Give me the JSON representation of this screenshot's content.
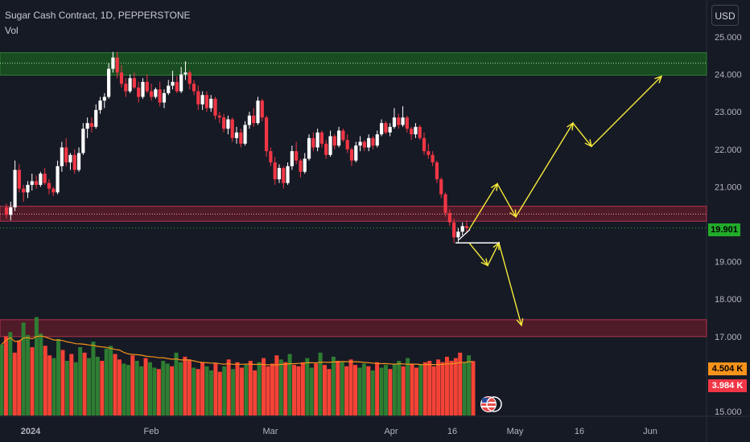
{
  "header": {
    "title": "Sugar Cash Contract, 1D, PEPPERSTONE",
    "indicator": "Vol",
    "currency_button": "USD"
  },
  "price_label": "19.901",
  "volume_labels": {
    "ma": "4.504 K",
    "last": "3.984 K"
  },
  "colors": {
    "background": "#161a25",
    "up": "#ffffff",
    "down": "#f23645",
    "vol_up": "#2e7d32",
    "vol_down": "#f44336",
    "vol_ma": "#f7931a",
    "supply_zone": "#1b5e20",
    "demand_zone": "#7f1d2b",
    "projection": "#f5ea3a",
    "price_badge": "#22ab2a"
  },
  "chart_data": {
    "type": "candlestick",
    "title": "Sugar Cash Contract, 1D, PEPPERSTONE",
    "ylim": [
      15.0,
      25.3
    ],
    "y_ticks": [
      "25.000",
      "24.000",
      "23.000",
      "22.000",
      "21.000",
      "19.000",
      "18.000",
      "17.000",
      "15.000"
    ],
    "x_ticks": [
      "2024",
      "Feb",
      "Mar",
      "Apr",
      "16",
      "May",
      "16",
      "Jun"
    ],
    "last_price": 19.901,
    "zones": [
      {
        "from": 23.98,
        "to": 24.58,
        "color": "green"
      },
      {
        "from": 20.08,
        "to": 20.48,
        "color": "red"
      },
      {
        "from": 17.0,
        "to": 17.45,
        "color": "red"
      }
    ],
    "dotted_levels": [
      24.3,
      20.27
    ],
    "projections": [
      {
        "name": "bullish",
        "points": [
          [
            19.86
          ],
          [
            21.08
          ],
          [
            20.2
          ],
          [
            22.7
          ],
          [
            22.08
          ],
          [
            23.95
          ]
        ]
      },
      {
        "name": "bearish",
        "points": [
          [
            19.5
          ],
          [
            18.9
          ],
          [
            19.5
          ],
          [
            17.3
          ]
        ]
      }
    ],
    "candles": [
      [
        20.45,
        20.55,
        20.15,
        20.25
      ],
      [
        20.25,
        20.6,
        20.1,
        20.45
      ],
      [
        20.45,
        21.7,
        20.35,
        21.45
      ],
      [
        21.45,
        21.6,
        20.85,
        20.95
      ],
      [
        20.95,
        21.05,
        20.6,
        20.85
      ],
      [
        20.85,
        21.15,
        20.7,
        21.05
      ],
      [
        21.05,
        21.35,
        20.9,
        21.15
      ],
      [
        21.15,
        21.3,
        20.95,
        21.05
      ],
      [
        21.05,
        21.4,
        21.0,
        21.35
      ],
      [
        21.35,
        21.5,
        21.05,
        21.1
      ],
      [
        21.1,
        21.2,
        20.8,
        20.95
      ],
      [
        20.95,
        21.0,
        20.75,
        20.85
      ],
      [
        20.85,
        21.7,
        20.8,
        21.55
      ],
      [
        21.55,
        22.2,
        21.4,
        22.05
      ],
      [
        22.05,
        22.3,
        21.55,
        21.65
      ],
      [
        21.65,
        21.9,
        21.45,
        21.85
      ],
      [
        21.85,
        22.0,
        21.35,
        21.45
      ],
      [
        21.45,
        22.05,
        21.4,
        21.9
      ],
      [
        21.9,
        22.7,
        21.85,
        22.55
      ],
      [
        22.55,
        22.85,
        22.3,
        22.7
      ],
      [
        22.7,
        22.85,
        22.45,
        22.6
      ],
      [
        22.6,
        23.2,
        22.55,
        23.05
      ],
      [
        23.05,
        23.4,
        22.95,
        23.3
      ],
      [
        23.3,
        23.5,
        23.1,
        23.4
      ],
      [
        23.4,
        24.3,
        23.35,
        24.15
      ],
      [
        24.15,
        24.6,
        24.05,
        24.45
      ],
      [
        24.45,
        24.6,
        23.9,
        24.05
      ],
      [
        24.05,
        24.25,
        23.65,
        23.75
      ],
      [
        23.75,
        23.9,
        23.4,
        23.55
      ],
      [
        23.55,
        24.0,
        23.5,
        23.9
      ],
      [
        23.9,
        24.05,
        23.6,
        23.65
      ],
      [
        23.65,
        23.8,
        23.25,
        23.4
      ],
      [
        23.4,
        23.9,
        23.35,
        23.8
      ],
      [
        23.8,
        24.0,
        23.5,
        23.55
      ],
      [
        23.55,
        23.75,
        23.3,
        23.4
      ],
      [
        23.4,
        23.65,
        23.35,
        23.6
      ],
      [
        23.6,
        23.8,
        23.15,
        23.25
      ],
      [
        23.25,
        23.6,
        23.1,
        23.5
      ],
      [
        23.5,
        23.85,
        23.45,
        23.7
      ],
      [
        23.7,
        24.1,
        23.6,
        23.8
      ],
      [
        23.8,
        23.95,
        23.5,
        23.55
      ],
      [
        23.55,
        24.2,
        23.5,
        24.0
      ],
      [
        24.0,
        24.35,
        23.85,
        24.05
      ],
      [
        24.05,
        24.1,
        23.6,
        23.75
      ],
      [
        23.75,
        23.85,
        23.45,
        23.55
      ],
      [
        23.55,
        23.7,
        23.05,
        23.2
      ],
      [
        23.2,
        23.55,
        23.05,
        23.45
      ],
      [
        23.45,
        23.55,
        23.0,
        23.1
      ],
      [
        23.1,
        23.45,
        23.0,
        23.35
      ],
      [
        23.35,
        23.4,
        22.8,
        22.9
      ],
      [
        22.9,
        23.0,
        22.7,
        22.85
      ],
      [
        22.85,
        22.95,
        22.45,
        22.55
      ],
      [
        22.55,
        22.9,
        22.4,
        22.8
      ],
      [
        22.8,
        22.85,
        22.2,
        22.3
      ],
      [
        22.3,
        22.6,
        22.15,
        22.45
      ],
      [
        22.45,
        22.55,
        22.05,
        22.15
      ],
      [
        22.15,
        22.75,
        22.1,
        22.65
      ],
      [
        22.65,
        23.0,
        22.55,
        22.9
      ],
      [
        22.9,
        23.1,
        22.6,
        22.7
      ],
      [
        22.7,
        23.4,
        22.65,
        23.3
      ],
      [
        23.3,
        23.35,
        22.75,
        22.85
      ],
      [
        22.85,
        22.9,
        21.8,
        21.95
      ],
      [
        21.95,
        22.05,
        21.55,
        21.65
      ],
      [
        21.65,
        21.8,
        21.05,
        21.2
      ],
      [
        21.2,
        21.6,
        21.1,
        21.5
      ],
      [
        21.5,
        21.55,
        20.95,
        21.1
      ],
      [
        21.1,
        21.65,
        21.05,
        21.55
      ],
      [
        21.55,
        22.1,
        21.45,
        21.95
      ],
      [
        21.95,
        22.2,
        21.6,
        21.7
      ],
      [
        21.7,
        21.75,
        21.25,
        21.4
      ],
      [
        21.4,
        21.9,
        21.35,
        21.75
      ],
      [
        21.75,
        22.4,
        21.7,
        22.3
      ],
      [
        22.3,
        22.45,
        21.95,
        22.05
      ],
      [
        22.05,
        22.55,
        21.95,
        22.45
      ],
      [
        22.45,
        22.5,
        22.05,
        22.15
      ],
      [
        22.15,
        22.25,
        21.75,
        21.85
      ],
      [
        21.85,
        22.5,
        21.8,
        22.35
      ],
      [
        22.35,
        22.4,
        22.0,
        22.1
      ],
      [
        22.1,
        22.6,
        22.05,
        22.5
      ],
      [
        22.5,
        22.55,
        22.2,
        22.25
      ],
      [
        22.25,
        22.4,
        21.9,
        22.0
      ],
      [
        22.0,
        22.05,
        21.55,
        21.7
      ],
      [
        21.7,
        22.2,
        21.65,
        22.1
      ],
      [
        22.1,
        22.35,
        21.95,
        22.2
      ],
      [
        22.2,
        22.25,
        21.95,
        22.05
      ],
      [
        22.05,
        22.4,
        21.95,
        22.3
      ],
      [
        22.3,
        22.35,
        22.0,
        22.1
      ],
      [
        22.1,
        22.5,
        22.05,
        22.4
      ],
      [
        22.4,
        22.8,
        22.35,
        22.7
      ],
      [
        22.7,
        22.75,
        22.4,
        22.45
      ],
      [
        22.45,
        22.7,
        22.35,
        22.6
      ],
      [
        22.6,
        23.1,
        22.55,
        22.85
      ],
      [
        22.85,
        22.95,
        22.55,
        22.65
      ],
      [
        22.65,
        23.15,
        22.6,
        22.85
      ],
      [
        22.85,
        22.9,
        22.45,
        22.55
      ],
      [
        22.55,
        22.6,
        22.25,
        22.4
      ],
      [
        22.4,
        22.7,
        22.3,
        22.6
      ],
      [
        22.6,
        22.65,
        22.25,
        22.3
      ],
      [
        22.3,
        22.45,
        21.85,
        21.95
      ],
      [
        21.95,
        22.15,
        21.75,
        21.85
      ],
      [
        21.85,
        21.95,
        21.55,
        21.65
      ],
      [
        21.65,
        21.7,
        21.1,
        21.2
      ],
      [
        21.2,
        21.25,
        20.7,
        20.8
      ],
      [
        20.8,
        20.85,
        20.2,
        20.3
      ],
      [
        20.3,
        20.4,
        19.95,
        20.05
      ],
      [
        20.05,
        20.15,
        19.5,
        19.65
      ],
      [
        19.65,
        19.9,
        19.5,
        19.8
      ],
      [
        19.8,
        20.05,
        19.7,
        19.95
      ],
      [
        19.95,
        20.1,
        19.75,
        19.9
      ]
    ],
    "volume": [
      [
        5.2,
        "up"
      ],
      [
        5.8,
        "down"
      ],
      [
        6.1,
        "up"
      ],
      [
        4.6,
        "down"
      ],
      [
        5.5,
        "down"
      ],
      [
        6.8,
        "up"
      ],
      [
        5.9,
        "up"
      ],
      [
        5.0,
        "down"
      ],
      [
        7.2,
        "up"
      ],
      [
        6.0,
        "up"
      ],
      [
        5.1,
        "down"
      ],
      [
        4.4,
        "down"
      ],
      [
        4.2,
        "up"
      ],
      [
        5.6,
        "up"
      ],
      [
        4.8,
        "down"
      ],
      [
        4.0,
        "up"
      ],
      [
        4.5,
        "down"
      ],
      [
        3.9,
        "up"
      ],
      [
        5.0,
        "up"
      ],
      [
        4.6,
        "down"
      ],
      [
        4.2,
        "up"
      ],
      [
        5.4,
        "up"
      ],
      [
        4.3,
        "up"
      ],
      [
        4.0,
        "down"
      ],
      [
        4.9,
        "up"
      ],
      [
        5.1,
        "up"
      ],
      [
        4.5,
        "down"
      ],
      [
        4.1,
        "down"
      ],
      [
        3.8,
        "up"
      ],
      [
        3.7,
        "up"
      ],
      [
        4.4,
        "down"
      ],
      [
        4.0,
        "up"
      ],
      [
        3.6,
        "up"
      ],
      [
        4.2,
        "down"
      ],
      [
        3.9,
        "up"
      ],
      [
        3.5,
        "up"
      ],
      [
        3.4,
        "down"
      ],
      [
        4.0,
        "up"
      ],
      [
        3.8,
        "up"
      ],
      [
        3.6,
        "down"
      ],
      [
        4.6,
        "up"
      ],
      [
        3.9,
        "up"
      ],
      [
        4.3,
        "down"
      ],
      [
        4.1,
        "down"
      ],
      [
        3.5,
        "up"
      ],
      [
        3.4,
        "down"
      ],
      [
        3.9,
        "down"
      ],
      [
        3.6,
        "up"
      ],
      [
        3.3,
        "up"
      ],
      [
        3.8,
        "down"
      ],
      [
        3.2,
        "down"
      ],
      [
        3.6,
        "up"
      ],
      [
        4.1,
        "down"
      ],
      [
        3.4,
        "up"
      ],
      [
        3.9,
        "down"
      ],
      [
        3.5,
        "down"
      ],
      [
        3.7,
        "up"
      ],
      [
        4.0,
        "down"
      ],
      [
        3.3,
        "down"
      ],
      [
        3.9,
        "up"
      ],
      [
        4.2,
        "down"
      ],
      [
        3.6,
        "down"
      ],
      [
        3.8,
        "down"
      ],
      [
        4.4,
        "down"
      ],
      [
        4.1,
        "up"
      ],
      [
        3.9,
        "down"
      ],
      [
        4.5,
        "up"
      ],
      [
        3.7,
        "down"
      ],
      [
        3.6,
        "down"
      ],
      [
        3.9,
        "down"
      ],
      [
        4.2,
        "up"
      ],
      [
        3.5,
        "up"
      ],
      [
        3.8,
        "down"
      ],
      [
        4.6,
        "up"
      ],
      [
        3.7,
        "down"
      ],
      [
        3.4,
        "down"
      ],
      [
        4.3,
        "up"
      ],
      [
        4.0,
        "down"
      ],
      [
        3.9,
        "up"
      ],
      [
        3.6,
        "down"
      ],
      [
        4.1,
        "down"
      ],
      [
        3.7,
        "down"
      ],
      [
        3.5,
        "up"
      ],
      [
        3.8,
        "up"
      ],
      [
        3.6,
        "down"
      ],
      [
        3.3,
        "up"
      ],
      [
        3.9,
        "down"
      ],
      [
        3.5,
        "up"
      ],
      [
        3.7,
        "up"
      ],
      [
        3.4,
        "down"
      ],
      [
        3.8,
        "up"
      ],
      [
        4.0,
        "up"
      ],
      [
        3.6,
        "down"
      ],
      [
        4.2,
        "up"
      ],
      [
        3.8,
        "down"
      ],
      [
        3.5,
        "down"
      ],
      [
        3.7,
        "up"
      ],
      [
        3.9,
        "down"
      ],
      [
        4.0,
        "down"
      ],
      [
        3.6,
        "down"
      ],
      [
        4.1,
        "down"
      ],
      [
        3.9,
        "down"
      ],
      [
        4.3,
        "down"
      ],
      [
        4.0,
        "down"
      ],
      [
        4.2,
        "down"
      ],
      [
        4.6,
        "down"
      ],
      [
        3.9,
        "up"
      ],
      [
        4.4,
        "up"
      ],
      [
        3.98,
        "down"
      ]
    ]
  }
}
